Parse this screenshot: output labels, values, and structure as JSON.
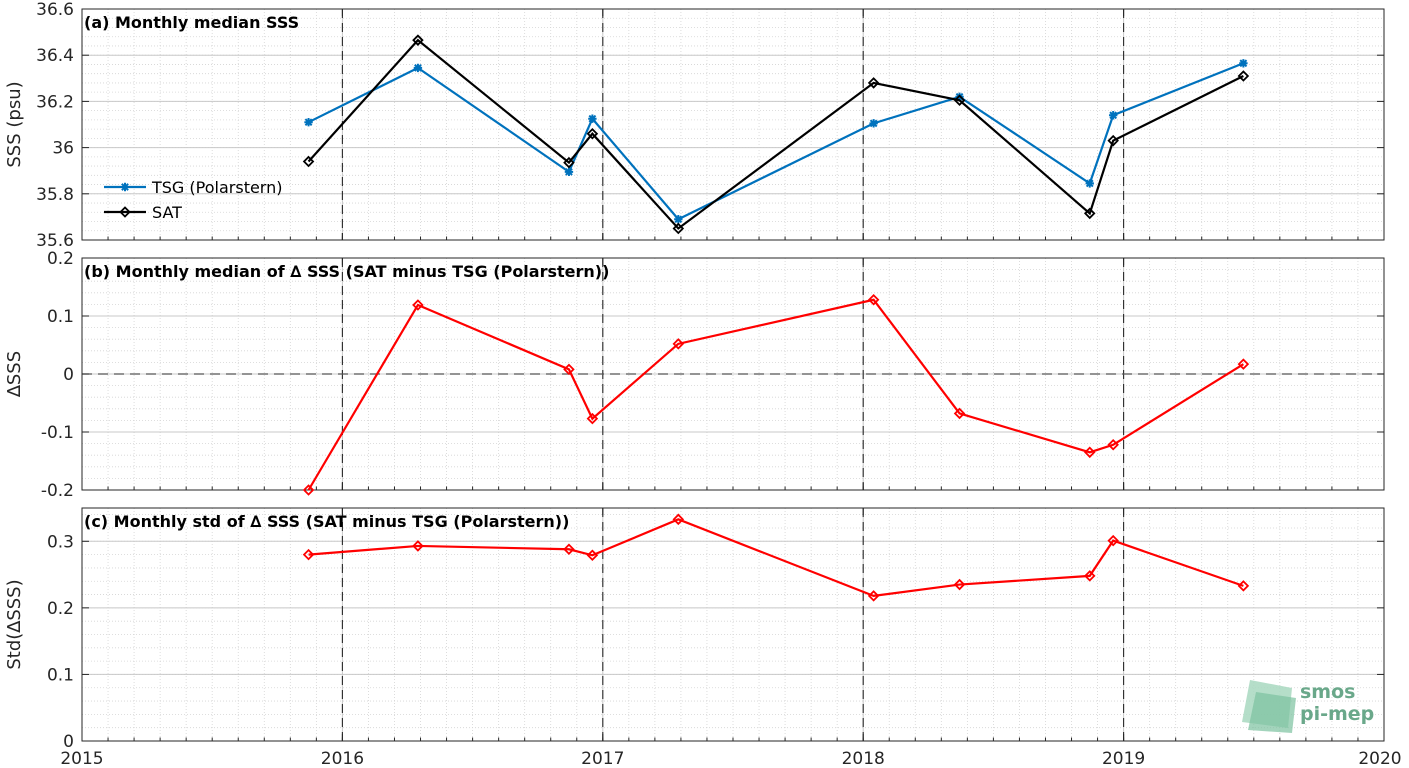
{
  "figure": {
    "x_ticks": [
      "2015",
      "2016",
      "2017",
      "2018",
      "2019",
      "2020"
    ],
    "logo_text": [
      "smos",
      "pi-mep"
    ]
  },
  "chart_data": [
    {
      "type": "line",
      "title": "(a) Monthly median SSS",
      "ylabel": "SSS (psu)",
      "xlim": [
        2015,
        2020
      ],
      "ylim": [
        35.6,
        36.6
      ],
      "yticks": [
        "35.6",
        "35.8",
        "36",
        "36.2",
        "36.4",
        "36.6"
      ],
      "grid": true,
      "legend_position": "bottom-left",
      "series": [
        {
          "name": "TSG (Polarstern)",
          "color": "#0072BD",
          "marker": "star",
          "x": [
            2015.87,
            2016.29,
            2016.87,
            2016.96,
            2017.29,
            2018.04,
            2018.37,
            2018.87,
            2018.96,
            2019.46
          ],
          "y": [
            36.11,
            36.345,
            35.895,
            36.125,
            35.69,
            36.105,
            36.22,
            35.845,
            36.14,
            36.365
          ]
        },
        {
          "name": "SAT",
          "color": "#000000",
          "marker": "diamond",
          "x": [
            2015.87,
            2016.29,
            2016.87,
            2016.96,
            2017.29,
            2018.04,
            2018.37,
            2018.87,
            2018.96,
            2019.46
          ],
          "y": [
            35.94,
            36.465,
            35.935,
            36.06,
            35.65,
            36.28,
            36.205,
            35.715,
            36.03,
            36.31
          ]
        }
      ]
    },
    {
      "type": "line",
      "title": "(b) Monthly median of ∆ SSS (SAT minus TSG (Polarstern))",
      "ylabel": "∆SSS",
      "xlim": [
        2015,
        2020
      ],
      "ylim": [
        -0.2,
        0.2
      ],
      "yticks": [
        "-0.2",
        "-0.1",
        "0",
        "0.1",
        "0.2"
      ],
      "grid": true,
      "zero_line": true,
      "series": [
        {
          "color": "#FF0000",
          "marker": "diamond",
          "x": [
            2015.87,
            2016.29,
            2016.87,
            2016.96,
            2017.29,
            2018.04,
            2018.37,
            2018.87,
            2018.96,
            2019.46
          ],
          "y": [
            -0.2,
            0.119,
            0.008,
            -0.077,
            0.052,
            0.128,
            -0.068,
            -0.135,
            -0.122,
            0.017
          ]
        }
      ]
    },
    {
      "type": "line",
      "title": "(c) Monthly std of ∆ SSS (SAT minus TSG (Polarstern))",
      "ylabel": "Std(∆SSS)",
      "xlim": [
        2015,
        2020
      ],
      "ylim": [
        0,
        0.35
      ],
      "yticks": [
        "0",
        "0.1",
        "0.2",
        "0.3"
      ],
      "grid": true,
      "series": [
        {
          "color": "#FF0000",
          "marker": "diamond",
          "x": [
            2015.87,
            2016.29,
            2016.87,
            2016.96,
            2017.29,
            2018.04,
            2018.37,
            2018.87,
            2018.96,
            2019.46
          ],
          "y": [
            0.28,
            0.293,
            0.288,
            0.279,
            0.333,
            0.218,
            0.235,
            0.248,
            0.301,
            0.233
          ]
        }
      ]
    }
  ]
}
